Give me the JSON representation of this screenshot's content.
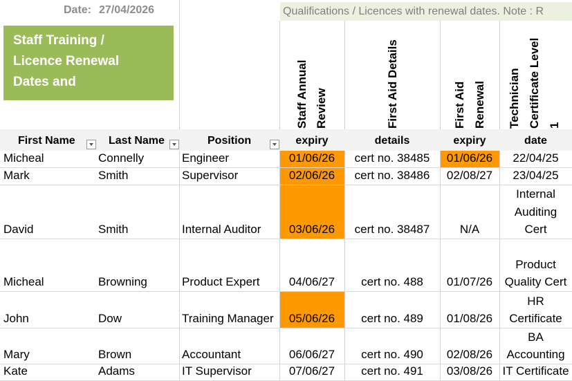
{
  "header": {
    "date_label": "Date:",
    "date_value": "27/04/2026",
    "title_lines": [
      "Staff Training /",
      "Licence Renewal",
      "Dates and"
    ],
    "qualifications_banner": "Qualifications / Licences with renewal dates. Note : R"
  },
  "rotated_headers": {
    "staff_annual_review": [
      "Staff Annual",
      "Review"
    ],
    "first_aid_details": [
      "First Aid Details"
    ],
    "first_aid_renewal": [
      "First Aid",
      "Renewal"
    ],
    "technician_cert": [
      "Technician",
      "Certificate Level",
      "1"
    ]
  },
  "columns": {
    "first_name": "First Name",
    "last_name": "Last Name",
    "position": "Position",
    "review_expiry": "expiry",
    "fa_details": "details",
    "fa_expiry": "expiry",
    "tech_date": "date"
  },
  "colors": {
    "highlight": "#ff9900",
    "title_bg": "#9bbb59",
    "banner_bg": "#ebf1de"
  },
  "rows": [
    {
      "first": "Micheal",
      "last": "Connelly",
      "position": "Engineer",
      "review": "01/06/26",
      "review_hl": true,
      "details": "cert no. 38485",
      "fa": "01/06/26",
      "fa_hl": true,
      "tech": [
        "22/04/25"
      ]
    },
    {
      "first": "Mark",
      "last": "Smith",
      "position": "Supervisor",
      "review": "02/06/26",
      "review_hl": true,
      "details": "cert no. 38486",
      "fa": "02/08/27",
      "fa_hl": false,
      "tech": [
        "23/04/25"
      ]
    },
    {
      "first": "David",
      "last": "Smith",
      "position": "Internal Auditor",
      "review": "03/06/26",
      "review_hl": true,
      "details": "cert no. 38487",
      "fa": "N/A",
      "fa_hl": false,
      "tech": [
        "Internal",
        "Auditing",
        "Cert"
      ]
    },
    {
      "first": "Micheal",
      "last": "Browning",
      "position": "Product Expert",
      "review": "04/06/27",
      "review_hl": false,
      "details": "cert no. 488",
      "fa": "01/07/26",
      "fa_hl": false,
      "tech": [
        "Product",
        "Quality Cert"
      ]
    },
    {
      "first": "John",
      "last": "Dow",
      "position": "Training Manager",
      "review": "05/06/26",
      "review_hl": true,
      "details": "cert no. 489",
      "fa": "01/08/26",
      "fa_hl": false,
      "tech": [
        "HR",
        "Certificate"
      ]
    },
    {
      "first": "Mary",
      "last": "Brown",
      "position": "Accountant",
      "review": "06/06/27",
      "review_hl": false,
      "details": "cert no. 490",
      "fa": "02/08/26",
      "fa_hl": false,
      "tech": [
        "BA",
        "Accounting"
      ]
    },
    {
      "first": "Kate",
      "last": "Adams",
      "position": "IT Supervisor",
      "review": "07/06/27",
      "review_hl": false,
      "details": "cert no. 491",
      "fa": "03/08/26",
      "fa_hl": false,
      "tech": [
        "IT Certificate"
      ]
    }
  ]
}
